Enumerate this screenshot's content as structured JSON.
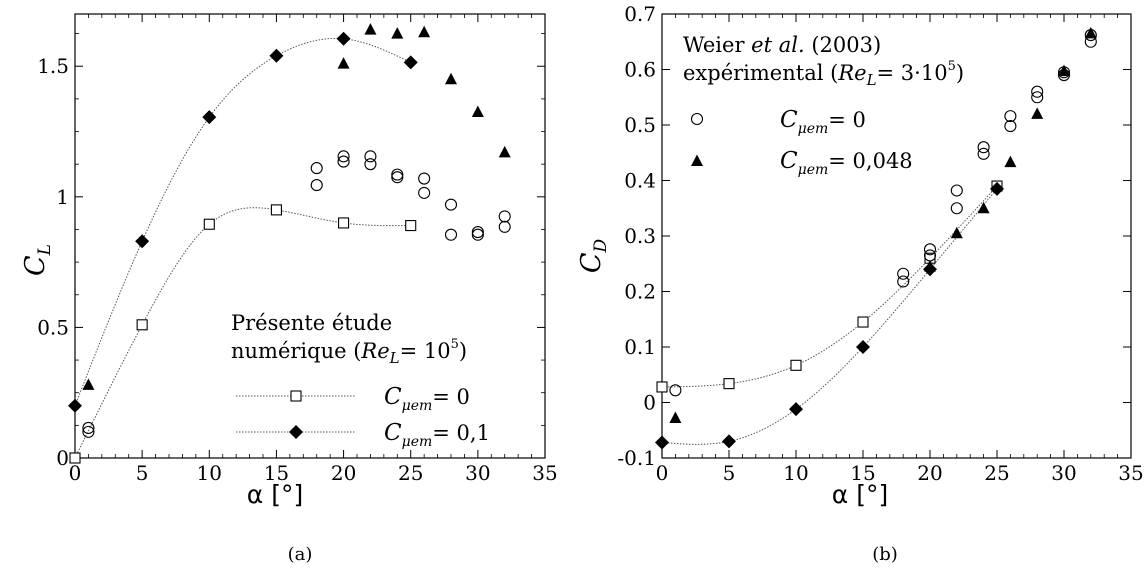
{
  "chart_data": [
    {
      "type": "scatter",
      "panel_label": "(a)",
      "xlabel_main": "α",
      "xlabel_unit": "[°]",
      "ylabel_main": "C",
      "ylabel_sub": "L",
      "xlim": [
        0,
        35
      ],
      "ylim": [
        0,
        1.7
      ],
      "x_ticks": [
        "0",
        "5",
        "10",
        "15",
        "20",
        "25",
        "30",
        "35"
      ],
      "y_ticks": [
        "0",
        "0.5",
        "1",
        "1.5"
      ],
      "legend": {
        "placement": "bottom-right",
        "title_line1": "Présente étude",
        "title_line2_text": "numérique (",
        "title_line2_re": "Re",
        "title_line2_sub": "L",
        "title_line2_eq": "= 10",
        "title_line2_sup": "5",
        "title_line2_close": ")",
        "entries": [
          {
            "sym": "C",
            "sub": "μem",
            "eq": "= 0"
          },
          {
            "sym": "C",
            "sub": "μem",
            "eq": "= 0,1"
          }
        ]
      },
      "series": [
        {
          "marker": "square-open",
          "line": "dotted",
          "x": [
            0,
            5,
            10,
            15,
            20,
            25
          ],
          "y": [
            0.0,
            0.51,
            0.895,
            0.95,
            0.9,
            0.89
          ]
        },
        {
          "marker": "diamond-filled",
          "line": "dotted",
          "x": [
            0,
            5,
            10,
            15,
            20,
            25
          ],
          "y": [
            0.2,
            0.83,
            1.305,
            1.54,
            1.605,
            1.515
          ]
        },
        {
          "marker": "circle-open",
          "x": [
            1,
            1,
            18,
            18,
            20,
            20,
            22,
            22,
            24,
            24,
            26,
            26,
            28,
            28,
            30,
            30,
            32,
            32
          ],
          "y": [
            0.1,
            0.115,
            1.045,
            1.11,
            1.135,
            1.155,
            1.125,
            1.155,
            1.075,
            1.085,
            1.015,
            1.07,
            0.855,
            0.97,
            0.855,
            0.865,
            0.885,
            0.925
          ]
        },
        {
          "marker": "triangle-filled",
          "x": [
            1,
            20,
            22,
            24,
            26,
            28,
            30,
            32
          ],
          "y": [
            0.28,
            1.51,
            1.64,
            1.625,
            1.63,
            1.45,
            1.325,
            1.17
          ]
        }
      ]
    },
    {
      "type": "scatter",
      "panel_label": "(b)",
      "xlabel_main": "α",
      "xlabel_unit": "[°]",
      "ylabel_main": "C",
      "ylabel_sub": "D",
      "xlim": [
        0,
        35
      ],
      "ylim": [
        -0.1,
        0.7
      ],
      "x_ticks": [
        "0",
        "5",
        "10",
        "15",
        "20",
        "25",
        "30",
        "35"
      ],
      "y_ticks": [
        "-0.1",
        "0",
        "0.1",
        "0.2",
        "0.3",
        "0.4",
        "0.5",
        "0.6",
        "0.7"
      ],
      "legend": {
        "placement": "top-left",
        "title_line1_a": "Weier ",
        "title_line1_b": "et al.",
        "title_line1_c": " (2003)",
        "title_line2_text": "expérimental (",
        "title_line2_re": "Re",
        "title_line2_sub": "L",
        "title_line2_eq": "= 3·10",
        "title_line2_sup": "5",
        "title_line2_close": ")",
        "entries": [
          {
            "sym": "C",
            "sub": "μem",
            "eq": "= 0"
          },
          {
            "sym": "C",
            "sub": "μem",
            "eq": "= 0,048"
          }
        ]
      },
      "series": [
        {
          "marker": "square-open",
          "line": "dotted",
          "x": [
            0,
            5,
            10,
            15,
            20,
            25
          ],
          "y": [
            0.028,
            0.034,
            0.067,
            0.145,
            0.26,
            0.39
          ]
        },
        {
          "marker": "diamond-filled",
          "line": "dotted",
          "x": [
            0,
            5,
            10,
            15,
            20,
            25
          ],
          "y": [
            -0.072,
            -0.07,
            -0.012,
            0.1,
            0.24,
            0.385
          ]
        },
        {
          "marker": "circle-open",
          "x": [
            1,
            18,
            18,
            20,
            20,
            22,
            22,
            24,
            24,
            26,
            26,
            28,
            28,
            30,
            30,
            32,
            32
          ],
          "y": [
            0.022,
            0.218,
            0.232,
            0.265,
            0.276,
            0.35,
            0.382,
            0.448,
            0.46,
            0.498,
            0.516,
            0.55,
            0.56,
            0.59,
            0.595,
            0.65,
            0.662
          ]
        },
        {
          "marker": "triangle-filled",
          "x": [
            1,
            20,
            22,
            24,
            26,
            28,
            30,
            32
          ],
          "y": [
            -0.028,
            0.245,
            0.305,
            0.35,
            0.433,
            0.52,
            0.597,
            0.665
          ]
        }
      ]
    }
  ]
}
